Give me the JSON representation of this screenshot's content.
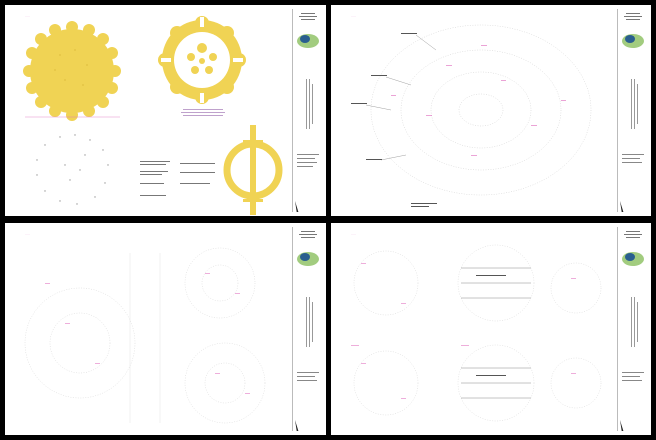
{
  "layout": "2x2 grid of drawing sheets",
  "colors": {
    "background": "#000000",
    "sheet": "#ffffff",
    "accent_fill": "#f0d354",
    "accent_stroke": "#e8c93d",
    "annotation": "#e070c0",
    "linework": "#9a9a9a",
    "logo_green": "#7ab648",
    "logo_blue": "#2a5f8f"
  },
  "sheets": [
    {
      "id": "sheet-1",
      "content": "yellow scalloped circle, yellow flower ring pattern, dotted circle, ring with vertical bar"
    },
    {
      "id": "sheet-2",
      "content": "large dotted circular layout with callouts"
    },
    {
      "id": "sheet-3",
      "content": "multiple small dotted layouts"
    },
    {
      "id": "sheet-4",
      "content": "four circular layouts with annotations"
    }
  ],
  "icons": {
    "logo": "leaf-logo-icon",
    "north_arrow": "north-arrow-icon"
  }
}
